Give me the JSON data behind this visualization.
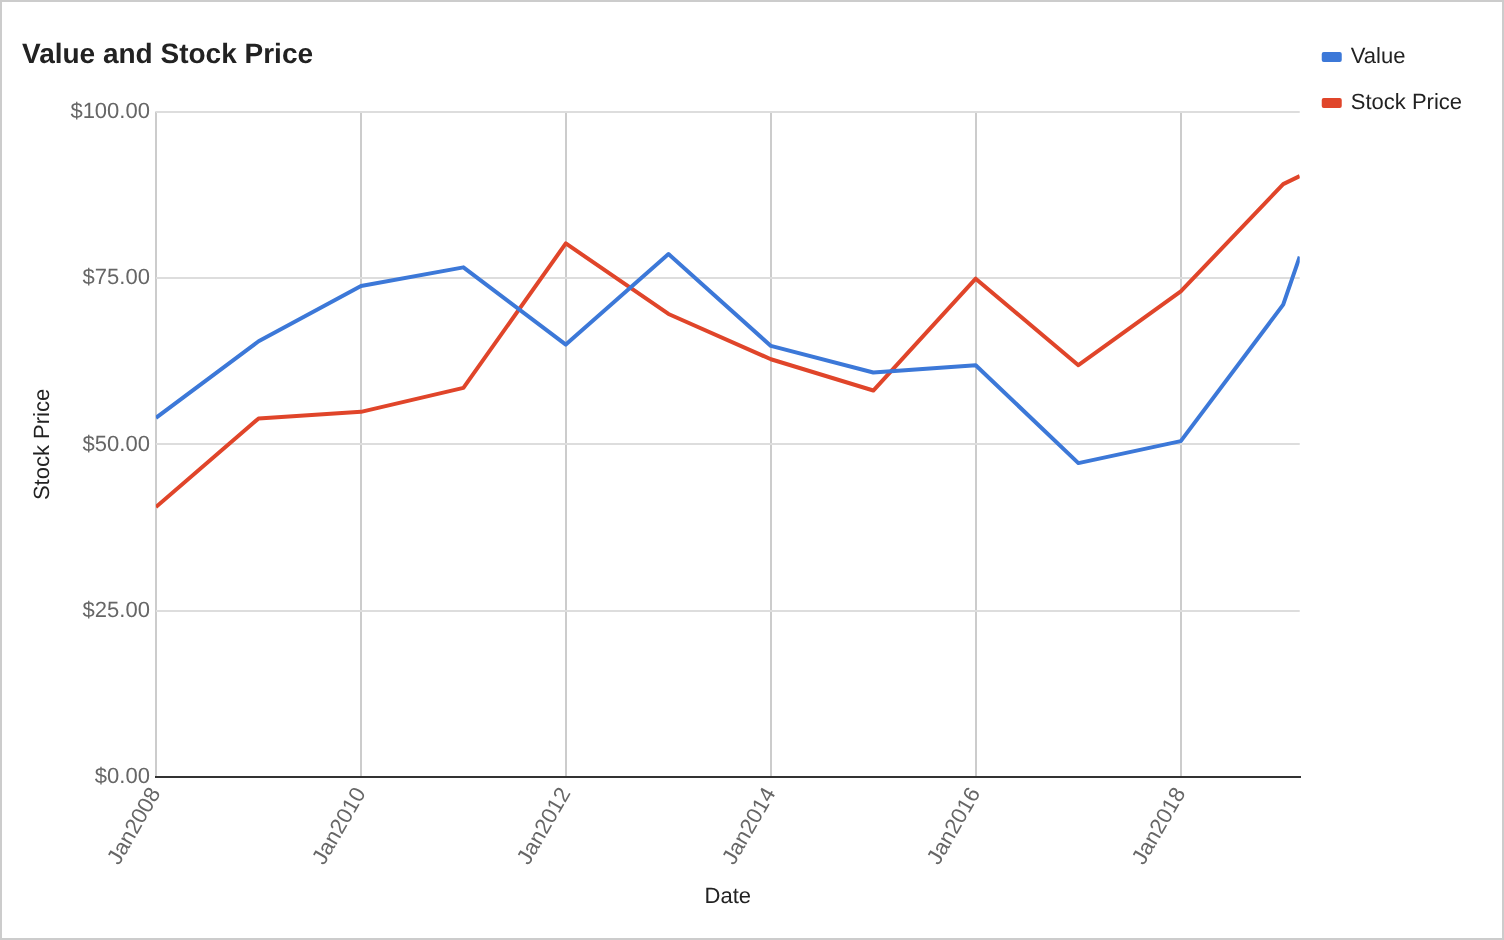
{
  "chart_data": {
    "type": "line",
    "title": "Value and Stock Price",
    "xlabel": "Date",
    "ylabel": "Stock Price",
    "x": [
      "2008-01",
      "2009-01",
      "2010-01",
      "2011-01",
      "2012-01",
      "2013-01",
      "2014-01",
      "2015-01",
      "2016-01",
      "2017-01",
      "2018-01",
      "2019-01",
      "2019-03"
    ],
    "series": [
      {
        "name": "Value",
        "color": "#3c78d8",
        "values": [
          54.0,
          65.5,
          73.8,
          76.6,
          65.0,
          78.6,
          64.8,
          60.8,
          61.9,
          47.2,
          50.5,
          71.0,
          78.2
        ]
      },
      {
        "name": "Stock Price",
        "color": "#e0452a",
        "values": [
          40.6,
          53.9,
          54.9,
          58.5,
          80.2,
          69.6,
          62.8,
          58.1,
          74.9,
          61.9,
          73.0,
          89.1,
          90.3
        ]
      }
    ],
    "xlim": [
      "2008-01",
      "2019-03"
    ],
    "xticks": [
      {
        "value": "2008-01",
        "label": "Jan2008"
      },
      {
        "value": "2010-01",
        "label": "Jan2010"
      },
      {
        "value": "2012-01",
        "label": "Jan2012"
      },
      {
        "value": "2014-01",
        "label": "Jan2014"
      },
      {
        "value": "2016-01",
        "label": "Jan2016"
      },
      {
        "value": "2018-01",
        "label": "Jan2018"
      }
    ],
    "ylim": [
      0,
      100
    ],
    "yticks": [
      {
        "value": 0,
        "label": "$0.00"
      },
      {
        "value": 25,
        "label": "$25.00"
      },
      {
        "value": 50,
        "label": "$50.00"
      },
      {
        "value": 75,
        "label": "$75.00"
      },
      {
        "value": 100,
        "label": "$100.00"
      }
    ],
    "grid": true,
    "legend": "top right",
    "marker": "none",
    "line_style": "solid"
  }
}
